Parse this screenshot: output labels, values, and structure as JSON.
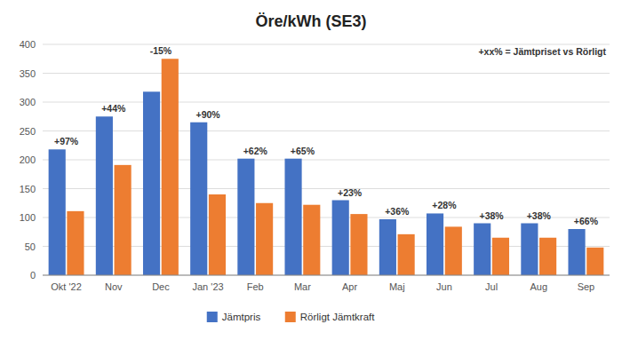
{
  "chart_data": {
    "type": "bar",
    "title": "Öre/kWh (SE3)",
    "categories": [
      "Okt '22",
      "Nov",
      "Dec",
      "Jan '23",
      "Feb",
      "Mar",
      "Apr",
      "Maj",
      "Jun",
      "Jul",
      "Aug",
      "Sep"
    ],
    "series": [
      {
        "name": "Jämtpris",
        "color": "#4472c4",
        "values": [
          218,
          275,
          318,
          265,
          202,
          202,
          130,
          97,
          107,
          90,
          90,
          80
        ]
      },
      {
        "name": "Rörligt Jämtkraft",
        "color": "#ed7d31",
        "values": [
          111,
          191,
          375,
          140,
          125,
          122,
          106,
          71,
          84,
          65,
          65,
          48
        ]
      }
    ],
    "annotations": [
      "+97%",
      "+44%",
      "-15%",
      "+90%",
      "+62%",
      "+65%",
      "+23%",
      "+36%",
      "+28%",
      "+38%",
      "+38%",
      "+66%"
    ],
    "note": "+xx% = Jämtpriset vs Rörligt",
    "ylim": [
      0,
      400
    ],
    "yticks": [
      0,
      50,
      100,
      150,
      200,
      250,
      300,
      350,
      400
    ],
    "grid": true,
    "legend": "bottom"
  }
}
